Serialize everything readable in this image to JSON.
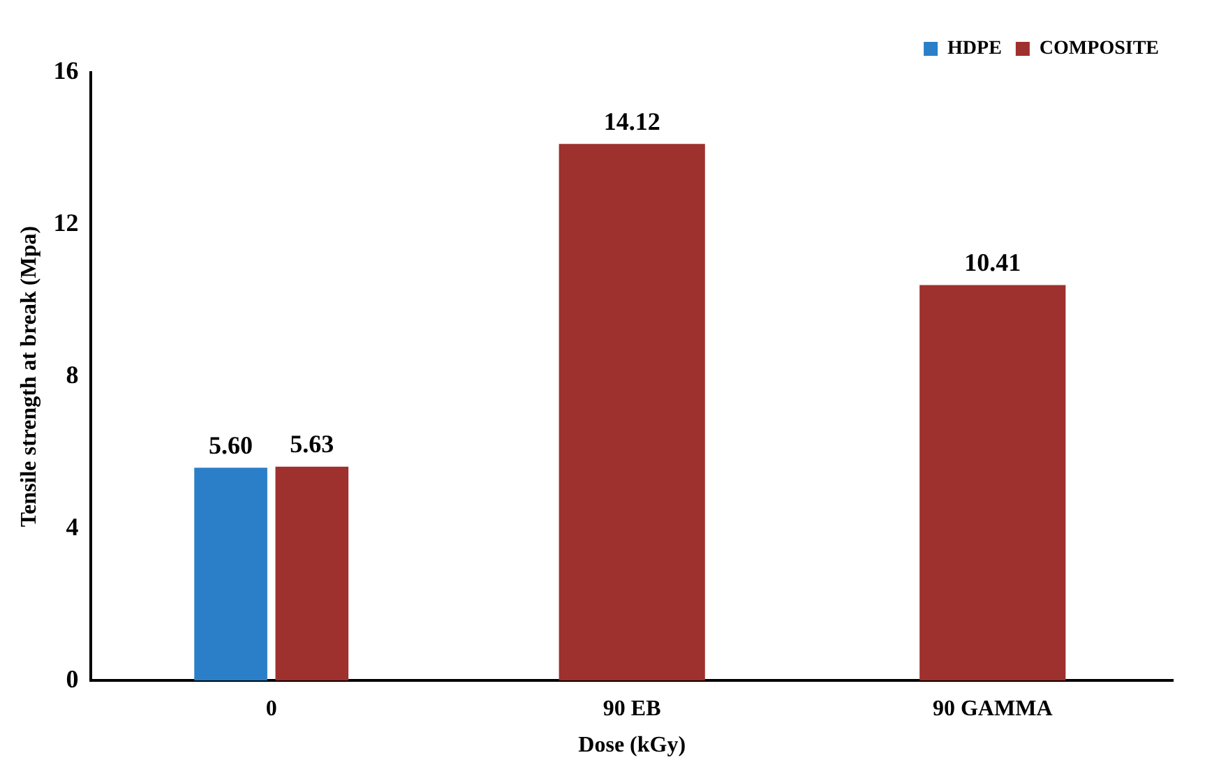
{
  "chart_data": {
    "type": "bar",
    "xlabel": "Dose (kGy)",
    "ylabel": "Tensile strength at break (Mpa)",
    "categories": [
      "0",
      "90 EB",
      "90 GAMMA"
    ],
    "series": [
      {
        "name": "HDPE",
        "color": "#2a7fc8",
        "values": [
          5.6,
          null,
          null
        ],
        "value_labels": [
          "5.60",
          null,
          null
        ]
      },
      {
        "name": "COMPOSITE",
        "color": "#9e302e",
        "values": [
          5.63,
          14.12,
          10.41
        ],
        "value_labels": [
          "5.63",
          "14.12",
          "10.41"
        ]
      }
    ],
    "ylim": [
      0,
      16
    ],
    "yticks": [
      0,
      4,
      8,
      12,
      16
    ],
    "grid": false,
    "legend": "top right"
  }
}
